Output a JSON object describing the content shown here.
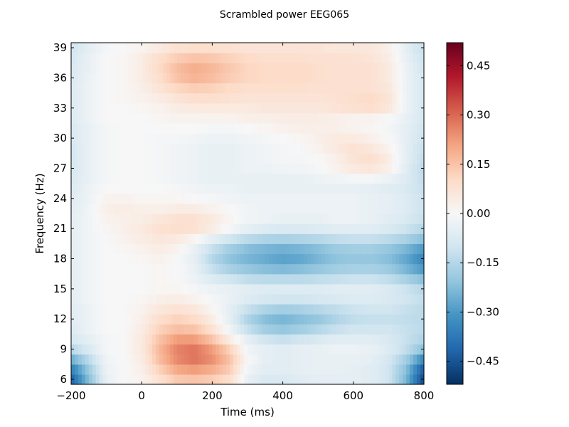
{
  "chart_data": {
    "type": "heatmap",
    "title": "Scrambled power EEG065",
    "xlabel": "Time (ms)",
    "ylabel": "Frequency (Hz)",
    "xlim": [
      -200,
      800
    ],
    "ylim": [
      6,
      39
    ],
    "x_ticks": [
      -200,
      0,
      200,
      400,
      600,
      800
    ],
    "y_ticks": [
      6,
      9,
      12,
      15,
      18,
      21,
      24,
      27,
      30,
      33,
      36,
      39
    ],
    "colorbar": {
      "colormap": "RdBu_r",
      "vmin": -0.52,
      "vmax": 0.52,
      "ticks": [
        0.45,
        0.3,
        0.15,
        0.0,
        -0.15,
        -0.3,
        -0.45
      ],
      "tick_labels": [
        "0.45",
        "0.30",
        "0.15",
        "0.00",
        "−0.15",
        "−0.30",
        "−0.45"
      ]
    },
    "time_ms": [
      -200,
      -150,
      -100,
      -50,
      0,
      50,
      100,
      150,
      200,
      250,
      300,
      350,
      400,
      450,
      500,
      550,
      600,
      650,
      700,
      750,
      800
    ],
    "frequency_hz": [
      6,
      7,
      8,
      9,
      10,
      11,
      12,
      13,
      14,
      15,
      16,
      17,
      18,
      19,
      20,
      21,
      22,
      23,
      24,
      25,
      26,
      27,
      28,
      29,
      30,
      31,
      32,
      33,
      34,
      35,
      36,
      37,
      38,
      39
    ],
    "power": [
      [
        -0.42,
        -0.22,
        -0.04,
        0.0,
        0.02,
        0.08,
        0.14,
        0.15,
        0.13,
        0.09,
        -0.04,
        -0.08,
        -0.08,
        -0.06,
        -0.05,
        -0.05,
        -0.05,
        -0.06,
        -0.1,
        -0.24,
        -0.48
      ],
      [
        -0.36,
        -0.19,
        -0.03,
        0.0,
        0.03,
        0.12,
        0.2,
        0.22,
        0.19,
        0.13,
        -0.02,
        -0.06,
        -0.06,
        -0.05,
        -0.04,
        -0.04,
        -0.05,
        -0.06,
        -0.1,
        -0.22,
        -0.44
      ],
      [
        -0.26,
        -0.14,
        -0.02,
        0.0,
        0.04,
        0.16,
        0.25,
        0.28,
        0.24,
        0.15,
        0.0,
        -0.05,
        -0.06,
        -0.05,
        -0.04,
        -0.04,
        -0.04,
        -0.05,
        -0.09,
        -0.18,
        -0.34
      ],
      [
        -0.15,
        -0.08,
        -0.01,
        0.0,
        0.05,
        0.17,
        0.26,
        0.28,
        0.22,
        0.12,
        -0.02,
        -0.05,
        -0.06,
        -0.05,
        -0.04,
        -0.03,
        -0.03,
        -0.04,
        -0.07,
        -0.13,
        -0.22
      ],
      [
        -0.09,
        -0.05,
        -0.01,
        0.0,
        0.05,
        0.15,
        0.22,
        0.22,
        0.15,
        0.04,
        -0.05,
        -0.1,
        -0.12,
        -0.1,
        -0.08,
        -0.06,
        -0.06,
        -0.06,
        -0.08,
        -0.12,
        -0.16
      ],
      [
        -0.07,
        -0.03,
        0.0,
        0.0,
        0.04,
        0.12,
        0.16,
        0.15,
        0.08,
        -0.02,
        -0.12,
        -0.18,
        -0.2,
        -0.18,
        -0.15,
        -0.12,
        -0.1,
        -0.1,
        -0.1,
        -0.12,
        -0.14
      ],
      [
        -0.06,
        -0.03,
        0.0,
        0.0,
        0.03,
        0.09,
        0.12,
        0.1,
        0.04,
        -0.05,
        -0.16,
        -0.22,
        -0.24,
        -0.22,
        -0.2,
        -0.16,
        -0.13,
        -0.12,
        -0.12,
        -0.13,
        -0.14
      ],
      [
        -0.06,
        -0.03,
        0.0,
        0.0,
        0.02,
        0.06,
        0.08,
        0.06,
        0.01,
        -0.05,
        -0.12,
        -0.16,
        -0.18,
        -0.17,
        -0.15,
        -0.13,
        -0.11,
        -0.1,
        -0.1,
        -0.12,
        -0.14
      ],
      [
        -0.05,
        -0.02,
        0.0,
        0.0,
        0.01,
        0.03,
        0.04,
        0.02,
        -0.01,
        -0.04,
        -0.07,
        -0.09,
        -0.1,
        -0.1,
        -0.09,
        -0.08,
        -0.07,
        -0.07,
        -0.08,
        -0.1,
        -0.13
      ],
      [
        -0.05,
        -0.02,
        0.0,
        0.0,
        0.0,
        0.01,
        0.01,
        -0.01,
        -0.03,
        -0.04,
        -0.06,
        -0.07,
        -0.07,
        -0.07,
        -0.07,
        -0.06,
        -0.06,
        -0.06,
        -0.08,
        -0.11,
        -0.15
      ],
      [
        -0.05,
        -0.02,
        0.0,
        0.0,
        0.0,
        0.01,
        0.0,
        -0.03,
        -0.07,
        -0.1,
        -0.13,
        -0.14,
        -0.14,
        -0.14,
        -0.13,
        -0.12,
        -0.11,
        -0.11,
        -0.13,
        -0.17,
        -0.22
      ],
      [
        -0.05,
        -0.02,
        0.0,
        0.0,
        0.0,
        0.01,
        0.0,
        -0.04,
        -0.12,
        -0.17,
        -0.2,
        -0.22,
        -0.23,
        -0.22,
        -0.2,
        -0.18,
        -0.17,
        -0.17,
        -0.19,
        -0.24,
        -0.3
      ],
      [
        -0.05,
        -0.02,
        0.0,
        0.0,
        0.01,
        0.02,
        0.0,
        -0.05,
        -0.15,
        -0.21,
        -0.24,
        -0.26,
        -0.28,
        -0.27,
        -0.24,
        -0.21,
        -0.2,
        -0.2,
        -0.22,
        -0.27,
        -0.34
      ],
      [
        -0.05,
        -0.02,
        0.0,
        0.01,
        0.02,
        0.04,
        0.02,
        -0.04,
        -0.12,
        -0.18,
        -0.22,
        -0.24,
        -0.25,
        -0.24,
        -0.22,
        -0.19,
        -0.18,
        -0.18,
        -0.2,
        -0.24,
        -0.3
      ],
      [
        -0.05,
        -0.02,
        0.0,
        0.02,
        0.04,
        0.06,
        0.05,
        0.01,
        -0.05,
        -0.1,
        -0.14,
        -0.16,
        -0.17,
        -0.16,
        -0.15,
        -0.13,
        -0.12,
        -0.12,
        -0.14,
        -0.17,
        -0.22
      ],
      [
        -0.05,
        -0.02,
        0.01,
        0.03,
        0.05,
        0.08,
        0.09,
        0.08,
        0.04,
        -0.01,
        -0.05,
        -0.07,
        -0.08,
        -0.08,
        -0.07,
        -0.06,
        -0.06,
        -0.06,
        -0.08,
        -0.11,
        -0.15
      ],
      [
        -0.05,
        -0.02,
        0.02,
        0.03,
        0.04,
        0.06,
        0.08,
        0.08,
        0.05,
        0.01,
        -0.02,
        -0.03,
        -0.04,
        -0.04,
        -0.04,
        -0.03,
        -0.03,
        -0.04,
        -0.06,
        -0.08,
        -0.12
      ],
      [
        -0.06,
        -0.02,
        0.03,
        0.04,
        0.03,
        0.03,
        0.04,
        0.04,
        0.02,
        0.0,
        -0.02,
        -0.03,
        -0.03,
        -0.03,
        -0.03,
        -0.03,
        -0.03,
        -0.04,
        -0.05,
        -0.07,
        -0.11
      ],
      [
        -0.06,
        -0.03,
        0.02,
        0.02,
        0.01,
        0.01,
        0.01,
        0.0,
        -0.01,
        -0.02,
        -0.03,
        -0.03,
        -0.03,
        -0.03,
        -0.03,
        -0.03,
        -0.03,
        -0.04,
        -0.05,
        -0.07,
        -0.11
      ],
      [
        -0.07,
        -0.03,
        0.0,
        0.0,
        0.0,
        0.0,
        -0.01,
        -0.02,
        -0.03,
        -0.03,
        -0.04,
        -0.04,
        -0.04,
        -0.04,
        -0.04,
        -0.04,
        -0.04,
        -0.05,
        -0.06,
        -0.08,
        -0.12
      ],
      [
        -0.08,
        -0.04,
        -0.01,
        0.0,
        0.0,
        -0.01,
        -0.02,
        -0.03,
        -0.04,
        -0.04,
        -0.04,
        -0.04,
        -0.04,
        -0.04,
        -0.03,
        -0.02,
        -0.01,
        -0.01,
        -0.03,
        -0.07,
        -0.13
      ],
      [
        -0.09,
        -0.04,
        -0.01,
        0.0,
        0.0,
        -0.01,
        -0.02,
        -0.03,
        -0.04,
        -0.04,
        -0.03,
        -0.03,
        -0.02,
        -0.02,
        -0.01,
        0.02,
        0.05,
        0.06,
        0.03,
        -0.06,
        -0.14
      ],
      [
        -0.09,
        -0.04,
        -0.01,
        0.0,
        0.0,
        -0.01,
        -0.02,
        -0.03,
        -0.04,
        -0.04,
        -0.03,
        -0.02,
        -0.01,
        -0.01,
        0.0,
        0.03,
        0.07,
        0.09,
        0.04,
        -0.05,
        -0.13
      ],
      [
        -0.09,
        -0.04,
        -0.01,
        0.0,
        0.0,
        -0.01,
        -0.02,
        -0.03,
        -0.04,
        -0.04,
        -0.03,
        -0.02,
        -0.01,
        0.0,
        0.02,
        0.05,
        0.08,
        0.06,
        0.02,
        -0.05,
        -0.12
      ],
      [
        -0.08,
        -0.04,
        -0.01,
        0.0,
        0.0,
        -0.01,
        -0.01,
        -0.02,
        -0.03,
        -0.03,
        -0.02,
        -0.01,
        0.0,
        0.01,
        0.03,
        0.05,
        0.05,
        0.03,
        0.0,
        -0.05,
        -0.11
      ],
      [
        -0.08,
        -0.04,
        -0.01,
        0.0,
        0.0,
        0.0,
        0.0,
        0.0,
        -0.01,
        -0.01,
        0.0,
        0.01,
        0.02,
        0.03,
        0.03,
        0.03,
        0.02,
        0.01,
        -0.01,
        -0.05,
        -0.1
      ],
      [
        -0.07,
        -0.03,
        0.0,
        0.0,
        0.0,
        0.01,
        0.02,
        0.02,
        0.02,
        0.02,
        0.03,
        0.03,
        0.04,
        0.04,
        0.04,
        0.03,
        0.02,
        0.02,
        0.0,
        -0.04,
        -0.09
      ],
      [
        -0.07,
        -0.03,
        0.0,
        0.0,
        0.01,
        0.02,
        0.04,
        0.05,
        0.05,
        0.05,
        0.05,
        0.06,
        0.06,
        0.06,
        0.06,
        0.07,
        0.08,
        0.09,
        0.06,
        -0.03,
        -0.09
      ],
      [
        -0.07,
        -0.03,
        0.0,
        0.01,
        0.02,
        0.04,
        0.07,
        0.09,
        0.09,
        0.08,
        0.07,
        0.07,
        0.07,
        0.07,
        0.07,
        0.08,
        0.09,
        0.1,
        0.07,
        -0.03,
        -0.09
      ],
      [
        -0.07,
        -0.03,
        0.0,
        0.01,
        0.03,
        0.07,
        0.11,
        0.13,
        0.12,
        0.1,
        0.09,
        0.09,
        0.09,
        0.09,
        0.08,
        0.08,
        0.08,
        0.08,
        0.06,
        -0.03,
        -0.09
      ],
      [
        -0.08,
        -0.03,
        0.0,
        0.01,
        0.04,
        0.09,
        0.15,
        0.18,
        0.16,
        0.13,
        0.11,
        0.1,
        0.1,
        0.1,
        0.09,
        0.08,
        0.08,
        0.08,
        0.05,
        -0.03,
        -0.09
      ],
      [
        -0.08,
        -0.04,
        0.0,
        0.01,
        0.04,
        0.1,
        0.16,
        0.19,
        0.17,
        0.14,
        0.11,
        0.1,
        0.1,
        0.1,
        0.09,
        0.08,
        0.08,
        0.08,
        0.05,
        -0.03,
        -0.1
      ],
      [
        -0.09,
        -0.04,
        0.0,
        0.01,
        0.04,
        0.09,
        0.13,
        0.15,
        0.14,
        0.12,
        0.1,
        0.09,
        0.09,
        0.09,
        0.08,
        0.08,
        0.08,
        0.07,
        0.04,
        -0.04,
        -0.11
      ],
      [
        -0.1,
        -0.05,
        -0.01,
        0.0,
        0.02,
        0.05,
        0.08,
        0.09,
        0.09,
        0.08,
        0.07,
        0.07,
        0.07,
        0.07,
        0.07,
        0.06,
        0.06,
        0.06,
        0.03,
        -0.05,
        -0.12
      ]
    ]
  }
}
